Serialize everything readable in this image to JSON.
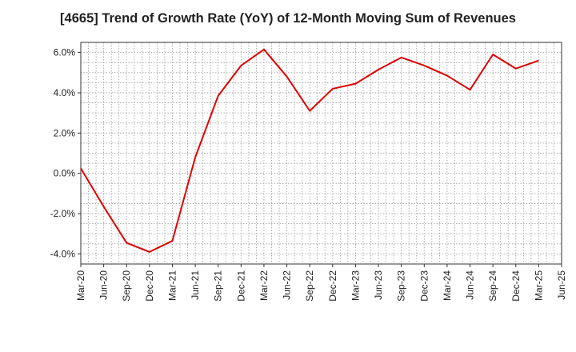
{
  "chart_data": {
    "type": "line",
    "title": "[4665]  Trend of Growth Rate (YoY) of 12-Month Moving Sum of Revenues",
    "xlabel": "",
    "ylabel": "",
    "x_ticks": [
      "Mar-20",
      "Jun-20",
      "Sep-20",
      "Dec-20",
      "Mar-21",
      "Jun-21",
      "Sep-21",
      "Dec-21",
      "Mar-22",
      "Jun-22",
      "Sep-22",
      "Dec-22",
      "Mar-23",
      "Jun-23",
      "Sep-23",
      "Dec-23",
      "Mar-24",
      "Jun-24",
      "Sep-24",
      "Dec-24",
      "Mar-25",
      "Jun-25"
    ],
    "y_ticks": [
      {
        "value": -4.0,
        "label": "-4.0%"
      },
      {
        "value": -2.0,
        "label": "-2.0%"
      },
      {
        "value": 0.0,
        "label": "0.0%"
      },
      {
        "value": 2.0,
        "label": "2.0%"
      },
      {
        "value": 4.0,
        "label": "4.0%"
      },
      {
        "value": 6.0,
        "label": "6.0%"
      }
    ],
    "ylim": [
      -4.5,
      6.5
    ],
    "grid": true,
    "series": [
      {
        "color": "#e00000",
        "x": [
          "Mar-20",
          "Jun-20",
          "Sep-20",
          "Dec-20",
          "Mar-21",
          "Jun-21",
          "Sep-21",
          "Dec-21",
          "Mar-22",
          "Jun-22",
          "Sep-22",
          "Dec-22",
          "Mar-23",
          "Jun-23",
          "Sep-23",
          "Dec-23",
          "Mar-24",
          "Jun-24",
          "Sep-24",
          "Dec-24",
          "Mar-25"
        ],
        "values": [
          0.25,
          -1.65,
          -3.45,
          -3.9,
          -3.35,
          0.8,
          3.85,
          5.35,
          6.15,
          4.8,
          3.1,
          4.2,
          4.45,
          5.15,
          5.75,
          5.35,
          4.85,
          4.15,
          5.9,
          5.2,
          5.6
        ]
      }
    ]
  }
}
